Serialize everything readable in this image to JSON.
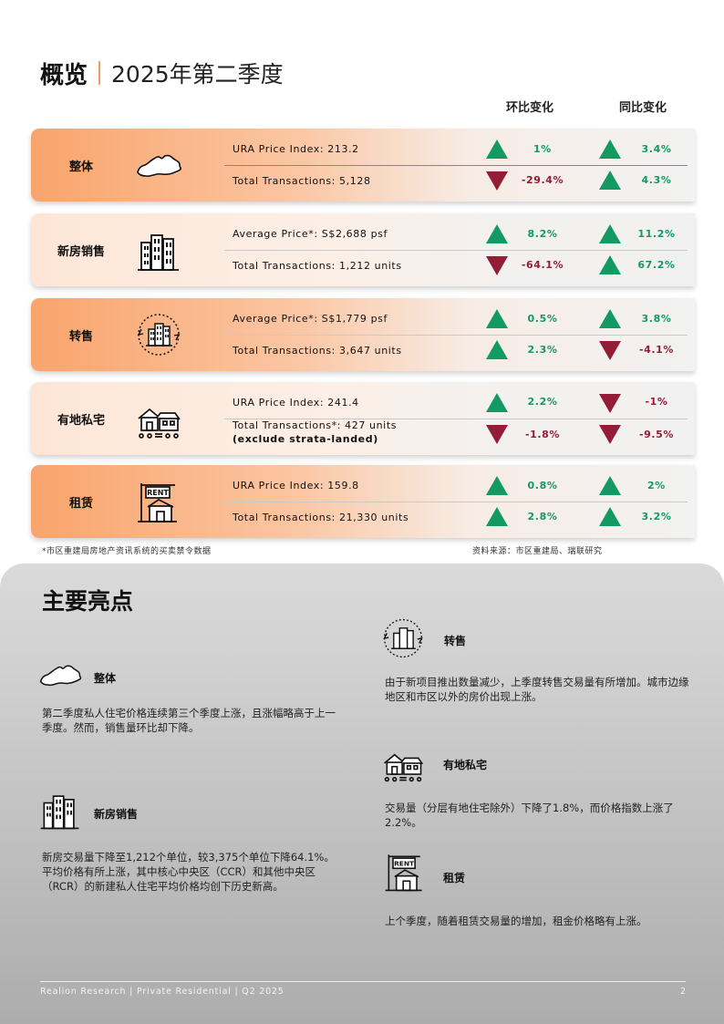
{
  "header": {
    "title": "概览",
    "period": "2025年第二季度"
  },
  "columns": {
    "qoq": "环比变化",
    "yoy": "同比变化"
  },
  "rows": [
    {
      "label": "整体",
      "icon": "singapore-map-icon",
      "m1": "URA Price Index: 213.2",
      "m1_qoq": "1%",
      "m1_qoq_dir": "up",
      "m1_yoy": "3.4%",
      "m1_yoy_dir": "up",
      "m2": "Total Transactions: 5,128",
      "m2_qoq": "-29.4%",
      "m2_qoq_dir": "down",
      "m2_yoy": "4.3%",
      "m2_yoy_dir": "up"
    },
    {
      "label": "新房销售",
      "icon": "new-buildings-icon",
      "m1": "Average Price*: S$2,688 psf",
      "m1_qoq": "8.2%",
      "m1_qoq_dir": "up",
      "m1_yoy": "11.2%",
      "m1_yoy_dir": "up",
      "m2": "Total Transactions: 1,212 units",
      "m2_qoq": "-64.1%",
      "m2_qoq_dir": "down",
      "m2_yoy": "67.2%",
      "m2_yoy_dir": "up"
    },
    {
      "label": "转售",
      "icon": "resale-building-icon",
      "m1": "Average Price*: S$1,779 psf",
      "m1_qoq": "0.5%",
      "m1_qoq_dir": "up",
      "m1_yoy": "3.8%",
      "m1_yoy_dir": "up",
      "m2": "Total Transactions: 3,647 units",
      "m2_qoq": "2.3%",
      "m2_qoq_dir": "up",
      "m2_yoy": "-4.1%",
      "m2_yoy_dir": "down"
    },
    {
      "label": "有地私宅",
      "icon": "landed-house-icon",
      "m1": "URA Price Index: 241.4",
      "m1_qoq": "2.2%",
      "m1_qoq_dir": "up",
      "m1_yoy": "-1%",
      "m1_yoy_dir": "down",
      "m2": "Total Transactions*: 427 units",
      "m2b": "(exclude strata-landed)",
      "m2_qoq": "-1.8%",
      "m2_qoq_dir": "down",
      "m2_yoy": "-9.5%",
      "m2_yoy_dir": "down"
    },
    {
      "label": "租赁",
      "icon": "rent-house-icon",
      "m1": "URA Price Index: 159.8",
      "m1_qoq": "0.8%",
      "m1_qoq_dir": "up",
      "m1_yoy": "2%",
      "m1_yoy_dir": "up",
      "m2": "Total Transactions: 21,330 units",
      "m2_qoq": "2.8%",
      "m2_qoq_dir": "up",
      "m2_yoy": "3.2%",
      "m2_yoy_dir": "up"
    }
  ],
  "notes": {
    "left": "*市区重建局房地产资讯系统的买卖禁令数据",
    "right": "资料来源：市区重建局、瑞联研究"
  },
  "highlights": {
    "title": "主要亮点",
    "overall": {
      "head": "整体",
      "text": "第二季度私人住宅价格连续第三个季度上涨，且涨幅略高于上一季度。然而，销售量环比却下降。"
    },
    "new_sales": {
      "head": "新房销售",
      "text": "新房交易量下降至1,212个单位，较3,375个单位下降64.1%。平均价格有所上涨，其中核心中央区（CCR）和其他中央区（RCR）的新建私人住宅平均价格均创下历史新高。"
    },
    "resale": {
      "head": "转售",
      "text": "由于新项目推出数量减少，上季度转售交易量有所增加。城市边缘地区和市区以外的房价出现上涨。"
    },
    "landed": {
      "head": "有地私宅",
      "text": "交易量（分层有地住宅除外）下降了1.8%，而价格指数上涨了2.2%。"
    },
    "rental": {
      "head": "租赁",
      "text": "上个季度，随着租赁交易量的增加，租金价格略有上涨。"
    }
  },
  "icon_labels": {
    "rent_sign": "RENT"
  },
  "footer": {
    "left": "Realion Research | Private Residential | Q2 2025",
    "page": "2"
  },
  "colors": {
    "up": "#139a62",
    "down": "#931c36",
    "accent": "#f39a5c"
  }
}
